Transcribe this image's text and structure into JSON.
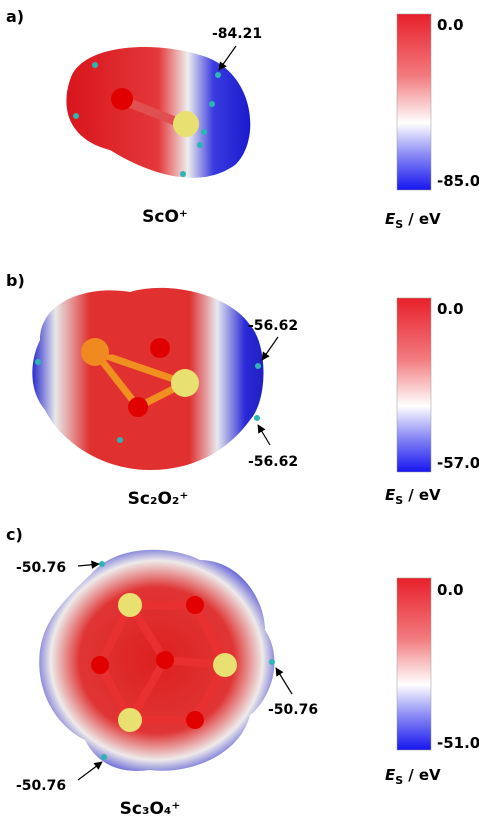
{
  "panels": [
    {
      "label": "a)",
      "molecule": "ScO⁺",
      "annotations": [
        "-84.21"
      ],
      "colorbar": {
        "max": "0.0",
        "min": "-85.0",
        "title": {
          "symbol": "E",
          "subscript": "S",
          "unit": "/ eV"
        }
      }
    },
    {
      "label": "b)",
      "molecule": "Sc₂O₂⁺",
      "annotations": [
        "-56.62",
        "-56.62"
      ],
      "colorbar": {
        "max": "0.0",
        "min": "-57.0",
        "title": {
          "symbol": "E",
          "subscript": "S",
          "unit": "/ eV"
        }
      }
    },
    {
      "label": "c)",
      "molecule": "Sc₃O₄⁺",
      "annotations": [
        "-50.76",
        "-50.76",
        "-50.76"
      ],
      "colorbar": {
        "max": "0.0",
        "min": "-51.0",
        "title": {
          "symbol": "E",
          "subscript": "S",
          "unit": "/ eV"
        }
      }
    }
  ]
}
